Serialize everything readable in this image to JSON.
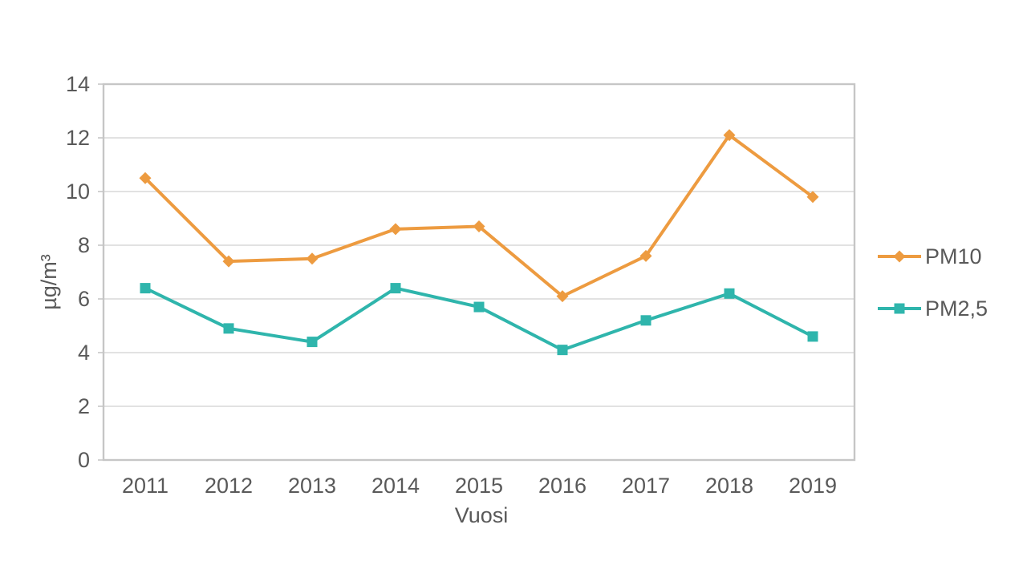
{
  "chart_data": {
    "type": "line",
    "title": "",
    "xlabel": "Vuosi",
    "ylabel": "µg/m³",
    "categories": [
      "2011",
      "2012",
      "2013",
      "2014",
      "2015",
      "2016",
      "2017",
      "2018",
      "2019"
    ],
    "series": [
      {
        "id": "pm10",
        "name": "PM10",
        "marker": "diamond",
        "color": "#ED9B40",
        "values": [
          10.5,
          7.4,
          7.5,
          8.6,
          8.7,
          6.1,
          7.6,
          12.1,
          9.8
        ]
      },
      {
        "id": "pm25",
        "name": "PM2,5",
        "marker": "square",
        "color": "#2FB5AC",
        "values": [
          6.4,
          4.9,
          4.4,
          6.4,
          5.7,
          4.1,
          5.2,
          6.2,
          4.6
        ]
      }
    ],
    "ylim": [
      0,
      14
    ],
    "y_ticks": [
      0,
      2,
      4,
      6,
      8,
      10,
      12,
      14
    ],
    "grid": true,
    "legend_position": "right"
  },
  "colors": {
    "text": "#595959",
    "gridline": "#D9D9D9",
    "axis": "#C6C6C6",
    "background": "#FFFFFF",
    "pm10": "#ED9B40",
    "pm25": "#2FB5AC"
  }
}
